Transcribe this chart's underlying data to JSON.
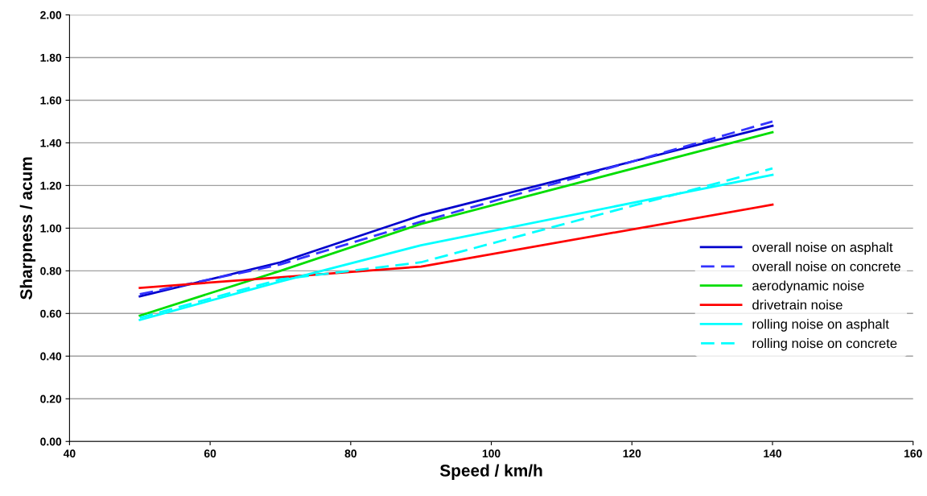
{
  "chart_data": {
    "type": "line",
    "xlabel": "Speed / km/h",
    "ylabel": "Sharpness / acum",
    "x": [
      50,
      70,
      90,
      140
    ],
    "series": [
      {
        "name": "overall noise on asphalt",
        "color": "#0000cc",
        "line_style": "solid",
        "values": [
          0.68,
          0.84,
          1.06,
          1.48
        ]
      },
      {
        "name": "overall noise on concrete",
        "color": "#3333ff",
        "line_style": "dashed",
        "values": [
          0.69,
          0.83,
          1.03,
          1.5
        ]
      },
      {
        "name": "aerodynamic noise",
        "color": "#00dd00",
        "line_style": "solid",
        "values": [
          0.59,
          0.8,
          1.02,
          1.45
        ]
      },
      {
        "name": "drivetrain noise",
        "color": "#ff0000",
        "line_style": "solid",
        "values": [
          0.72,
          0.77,
          0.82,
          1.11
        ]
      },
      {
        "name": "rolling noise on asphalt",
        "color": "#00ffff",
        "line_style": "solid",
        "values": [
          0.57,
          0.75,
          0.92,
          1.25
        ]
      },
      {
        "name": "rolling noise on concrete",
        "color": "#00ffff",
        "line_style": "dashed",
        "values": [
          0.58,
          0.76,
          0.84,
          1.28
        ]
      }
    ],
    "xlim": [
      40,
      160
    ],
    "xticks": [
      40,
      60,
      80,
      100,
      120,
      140,
      160
    ],
    "ylim": [
      0,
      2
    ],
    "yticks": [
      {
        "value": 0,
        "label": "0.00"
      },
      {
        "value": 0.2,
        "label": "0.20"
      },
      {
        "value": 0.4,
        "label": "0.40"
      },
      {
        "value": 0.6,
        "label": "0.60"
      },
      {
        "value": 0.8,
        "label": "0.80"
      },
      {
        "value": 1.0,
        "label": "1.00"
      },
      {
        "value": 1.2,
        "label": "1.20"
      },
      {
        "value": 1.4,
        "label": "1.40"
      },
      {
        "value": 1.6,
        "label": "1.60"
      },
      {
        "value": 1.8,
        "label": "1.80"
      },
      {
        "value": 2.0,
        "label": "2.00"
      }
    ],
    "grid": "y",
    "legend": "right",
    "marker": "none"
  }
}
